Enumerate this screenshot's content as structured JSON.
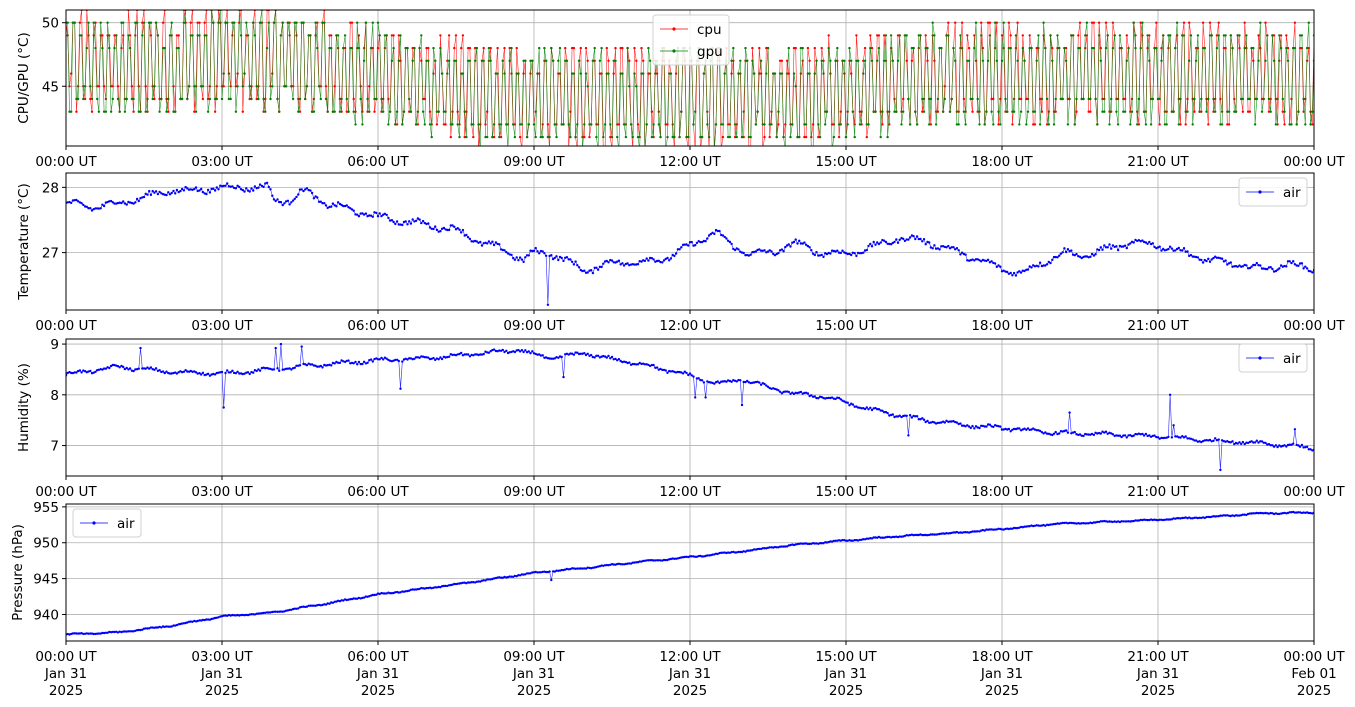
{
  "chart_data": [
    {
      "type": "line",
      "ylabel": "CPU/GPU (°C)",
      "x_ticks": [
        "00:00 UT",
        "03:00 UT",
        "06:00 UT",
        "09:00 UT",
        "12:00 UT",
        "15:00 UT",
        "18:00 UT",
        "21:00 UT",
        "00:00 UT"
      ],
      "xlim_hours": [
        0,
        24
      ],
      "y_ticks": [
        45,
        50
      ],
      "ylim": [
        40.3,
        51.0
      ],
      "grid": true,
      "legend": "top-center",
      "series": [
        {
          "name": "cpu",
          "color": "#ff0000",
          "anchors": [
            [
              0,
              47.2
            ],
            [
              1,
              46.6
            ],
            [
              2,
              47.0
            ],
            [
              3,
              47.4
            ],
            [
              4,
              47.2
            ],
            [
              5,
              46.8
            ],
            [
              6,
              45.9
            ],
            [
              7,
              45.0
            ],
            [
              8,
              44.4
            ],
            [
              9,
              44.3
            ],
            [
              10,
              44.1
            ],
            [
              11,
              44.2
            ],
            [
              12,
              44.4
            ],
            [
              13,
              44.3
            ],
            [
              14,
              44.2
            ],
            [
              15,
              44.7
            ],
            [
              16,
              45.7
            ],
            [
              17,
              46.0
            ],
            [
              18,
              45.9
            ],
            [
              19,
              45.8
            ],
            [
              20,
              45.9
            ],
            [
              21,
              46.0
            ],
            [
              22,
              45.9
            ],
            [
              23,
              45.8
            ],
            [
              24,
              45.8
            ]
          ],
          "amplitude": 3.1,
          "period_min": 8
        },
        {
          "name": "gpu",
          "color": "#008000",
          "anchors": [
            [
              0,
              46.9
            ],
            [
              1,
              46.4
            ],
            [
              2,
              46.8
            ],
            [
              3,
              47.2
            ],
            [
              4,
              47.0
            ],
            [
              5,
              46.6
            ],
            [
              6,
              45.6
            ],
            [
              7,
              44.8
            ],
            [
              8,
              44.2
            ],
            [
              9,
              44.1
            ],
            [
              10,
              43.9
            ],
            [
              11,
              44.0
            ],
            [
              12,
              44.2
            ],
            [
              13,
              44.1
            ],
            [
              14,
              44.0
            ],
            [
              15,
              44.5
            ],
            [
              16,
              45.5
            ],
            [
              17,
              45.8
            ],
            [
              18,
              45.7
            ],
            [
              19,
              45.6
            ],
            [
              20,
              45.7
            ],
            [
              21,
              45.8
            ],
            [
              22,
              45.7
            ],
            [
              23,
              45.6
            ],
            [
              24,
              45.6
            ]
          ],
          "amplitude": 3.0,
          "period_min": 8
        }
      ]
    },
    {
      "type": "line",
      "ylabel": "Temperature (°C)",
      "x_ticks": [
        "00:00 UT",
        "03:00 UT",
        "06:00 UT",
        "09:00 UT",
        "12:00 UT",
        "15:00 UT",
        "18:00 UT",
        "21:00 UT",
        "00:00 UT"
      ],
      "xlim_hours": [
        0,
        24
      ],
      "y_ticks": [
        27,
        28
      ],
      "ylim": [
        26.12,
        28.22
      ],
      "grid": true,
      "legend": "top-right",
      "series": [
        {
          "name": "air",
          "color": "#0000ff",
          "anchors": [
            [
              0,
              27.75
            ],
            [
              0.5,
              27.7
            ],
            [
              1,
              27.75
            ],
            [
              1.5,
              27.85
            ],
            [
              2,
              27.95
            ],
            [
              2.5,
              27.95
            ],
            [
              3,
              28.0
            ],
            [
              3.5,
              28.0
            ],
            [
              3.9,
              28.0
            ],
            [
              4.0,
              27.8
            ],
            [
              4.3,
              27.8
            ],
            [
              4.6,
              27.95
            ],
            [
              5,
              27.75
            ],
            [
              5.5,
              27.65
            ],
            [
              6,
              27.55
            ],
            [
              6.5,
              27.48
            ],
            [
              7,
              27.42
            ],
            [
              7.5,
              27.35
            ],
            [
              8,
              27.15
            ],
            [
              8.5,
              27.02
            ],
            [
              8.8,
              26.88
            ],
            [
              9,
              27.0
            ],
            [
              9.3,
              27.0
            ],
            [
              9.6,
              26.88
            ],
            [
              10,
              26.72
            ],
            [
              10.5,
              26.85
            ],
            [
              11,
              26.85
            ],
            [
              11.5,
              26.9
            ],
            [
              12,
              27.1
            ],
            [
              12.5,
              27.32
            ],
            [
              12.8,
              27.1
            ],
            [
              13.2,
              26.98
            ],
            [
              13.6,
              27.0
            ],
            [
              14,
              27.15
            ],
            [
              14.5,
              27.0
            ],
            [
              15,
              26.98
            ],
            [
              15.5,
              27.08
            ],
            [
              16,
              27.22
            ],
            [
              16.5,
              27.18
            ],
            [
              17,
              27.05
            ],
            [
              17.5,
              26.9
            ],
            [
              18,
              26.75
            ],
            [
              18.4,
              26.68
            ],
            [
              18.7,
              26.82
            ],
            [
              19.2,
              27.0
            ],
            [
              19.6,
              26.95
            ],
            [
              20,
              27.05
            ],
            [
              20.5,
              27.15
            ],
            [
              21,
              27.12
            ],
            [
              21.5,
              27.0
            ],
            [
              22,
              26.88
            ],
            [
              22.5,
              26.82
            ],
            [
              23,
              26.75
            ],
            [
              23.5,
              26.82
            ],
            [
              24,
              26.75
            ]
          ],
          "noise": 0.07,
          "spikes": [
            [
              9.28,
              26.2
            ]
          ]
        }
      ]
    },
    {
      "type": "line",
      "ylabel": "Humidity (%)",
      "x_ticks": [
        "00:00 UT",
        "03:00 UT",
        "06:00 UT",
        "09:00 UT",
        "12:00 UT",
        "15:00 UT",
        "18:00 UT",
        "21:00 UT",
        "00:00 UT"
      ],
      "xlim_hours": [
        0,
        24
      ],
      "y_ticks": [
        7,
        8,
        9
      ],
      "ylim": [
        6.4,
        9.1
      ],
      "grid": true,
      "legend": "top-right",
      "series": [
        {
          "name": "air",
          "color": "#0000ff",
          "anchors": [
            [
              0,
              8.4
            ],
            [
              1,
              8.55
            ],
            [
              2,
              8.45
            ],
            [
              3,
              8.42
            ],
            [
              4,
              8.5
            ],
            [
              5,
              8.6
            ],
            [
              6,
              8.68
            ],
            [
              7,
              8.72
            ],
            [
              8,
              8.82
            ],
            [
              8.7,
              8.88
            ],
            [
              9.3,
              8.72
            ],
            [
              10,
              8.82
            ],
            [
              10.5,
              8.7
            ],
            [
              11,
              8.62
            ],
            [
              11.5,
              8.5
            ],
            [
              12,
              8.38
            ],
            [
              12.5,
              8.22
            ],
            [
              13,
              8.3
            ],
            [
              13.5,
              8.15
            ],
            [
              14,
              8.02
            ],
            [
              14.5,
              7.98
            ],
            [
              15,
              7.85
            ],
            [
              15.5,
              7.7
            ],
            [
              16,
              7.6
            ],
            [
              16.5,
              7.5
            ],
            [
              17,
              7.45
            ],
            [
              17.5,
              7.38
            ],
            [
              18,
              7.35
            ],
            [
              19,
              7.25
            ],
            [
              20,
              7.22
            ],
            [
              21,
              7.18
            ],
            [
              22,
              7.1
            ],
            [
              23,
              7.05
            ],
            [
              24,
              6.95
            ]
          ],
          "noise": 0.05,
          "spikes": [
            [
              1.45,
              8.92
            ],
            [
              3.05,
              7.75
            ],
            [
              4.05,
              8.92
            ],
            [
              4.15,
              9.0
            ],
            [
              4.55,
              8.95
            ],
            [
              6.45,
              8.12
            ],
            [
              9.55,
              8.35
            ],
            [
              12.1,
              7.95
            ],
            [
              12.3,
              7.95
            ],
            [
              13.0,
              7.8
            ],
            [
              16.2,
              7.2
            ],
            [
              19.3,
              7.65
            ],
            [
              21.25,
              8.0
            ],
            [
              21.3,
              7.4
            ],
            [
              22.2,
              6.52
            ],
            [
              23.65,
              7.32
            ]
          ]
        }
      ]
    },
    {
      "type": "line",
      "ylabel": "Pressure (hPa)",
      "x_ticks": [
        "00:00 UT",
        "03:00 UT",
        "06:00 UT",
        "09:00 UT",
        "12:00 UT",
        "15:00 UT",
        "18:00 UT",
        "21:00 UT",
        "00:00 UT"
      ],
      "x_ticks_line2": [
        "Jan 31",
        "Jan 31",
        "Jan 31",
        "Jan 31",
        "Jan 31",
        "Jan 31",
        "Jan 31",
        "Jan 31",
        "Feb 01"
      ],
      "x_ticks_line3": [
        "2025",
        "2025",
        "2025",
        "2025",
        "2025",
        "2025",
        "2025",
        "2025",
        "2025"
      ],
      "xlim_hours": [
        0,
        24
      ],
      "y_ticks": [
        940,
        945,
        950,
        955
      ],
      "ylim": [
        936.3,
        955.4
      ],
      "grid": true,
      "legend": "top-left",
      "series": [
        {
          "name": "air",
          "color": "#0000ff",
          "anchors": [
            [
              0,
              937.2
            ],
            [
              1,
              937.5
            ],
            [
              2,
              938.4
            ],
            [
              3,
              939.7
            ],
            [
              4,
              940.3
            ],
            [
              5,
              941.5
            ],
            [
              6,
              942.8
            ],
            [
              7,
              943.7
            ],
            [
              8,
              944.7
            ],
            [
              9,
              945.8
            ],
            [
              10,
              946.5
            ],
            [
              11,
              947.3
            ],
            [
              12,
              948.0
            ],
            [
              13,
              948.8
            ],
            [
              14,
              949.7
            ],
            [
              15,
              950.3
            ],
            [
              16,
              950.9
            ],
            [
              17,
              951.3
            ],
            [
              18,
              951.9
            ],
            [
              19,
              952.6
            ],
            [
              20,
              952.9
            ],
            [
              21,
              953.2
            ],
            [
              22,
              953.6
            ],
            [
              23,
              954.1
            ],
            [
              24,
              954.2
            ]
          ],
          "noise": 0.12,
          "spikes": [
            [
              9.35,
              944.8
            ]
          ]
        }
      ]
    }
  ]
}
